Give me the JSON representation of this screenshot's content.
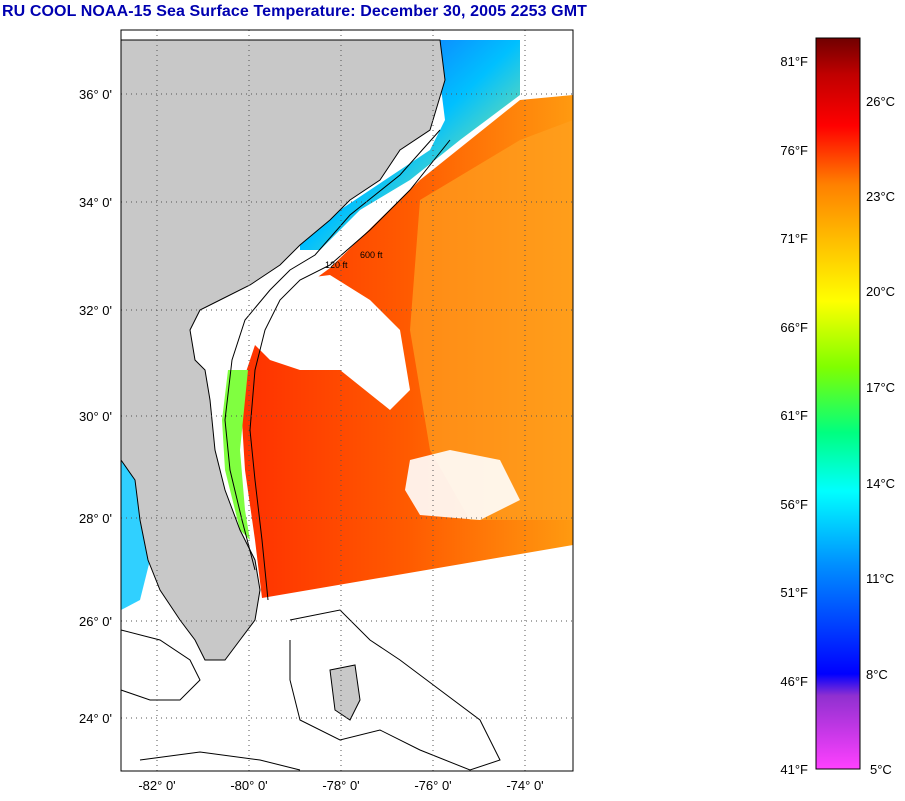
{
  "title": "RU COOL  NOAA-15  Sea Surface Temperature:  December 30, 2005 2253 GMT",
  "map": {
    "lat_labels": [
      "36° 0'",
      "34° 0'",
      "32° 0'",
      "30° 0'",
      "28° 0'",
      "26° 0'",
      "24° 0'"
    ],
    "lon_labels": [
      "-82° 0'",
      "-80° 0'",
      "-78° 0'",
      "-76° 0'",
      "-74° 0'"
    ],
    "lat_range": [
      23,
      37
    ],
    "lon_range": [
      -83,
      -73
    ],
    "depth_contours": [
      "120 ft",
      "600 ft"
    ],
    "land_color": "#c8c8c8",
    "cloud_color": "#ffffff"
  },
  "colorbar": {
    "f_labels": [
      "81°F",
      "76°F",
      "71°F",
      "66°F",
      "61°F",
      "56°F",
      "51°F",
      "46°F",
      "41°F"
    ],
    "c_labels": [
      "26°C",
      "23°C",
      "20°C",
      "17°C",
      "14°C",
      "11°C",
      "8°C",
      "5°C"
    ],
    "colors_bottom_to_top": [
      "#ff40ff",
      "#9030d0",
      "#0000ff",
      "#0090ff",
      "#00ffff",
      "#00ff80",
      "#80ff00",
      "#ffff00",
      "#ffc000",
      "#ff8000",
      "#ff0000",
      "#c00000",
      "#700000"
    ]
  }
}
